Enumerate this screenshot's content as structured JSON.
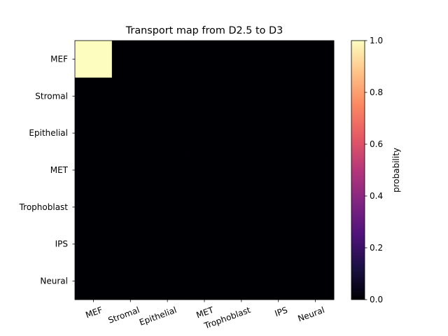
{
  "chart_data": {
    "type": "heatmap",
    "title": "Transport map from D2.5 to D3",
    "row_labels": [
      "MEF",
      "Stromal",
      "Epithelial",
      "MET",
      "Trophoblast",
      "IPS",
      "Neural"
    ],
    "col_labels": [
      "MEF",
      "Stromal",
      "Epithelial",
      "MET",
      "Trophoblast",
      "IPS",
      "Neural"
    ],
    "values": [
      [
        1,
        0,
        0,
        0,
        0,
        0,
        0
      ],
      [
        0,
        0,
        0,
        0,
        0,
        0,
        0
      ],
      [
        0,
        0,
        0,
        0,
        0,
        0,
        0
      ],
      [
        0,
        0,
        0,
        0,
        0,
        0,
        0
      ],
      [
        0,
        0,
        0,
        0,
        0,
        0,
        0
      ],
      [
        0,
        0,
        0,
        0,
        0,
        0,
        0
      ],
      [
        0,
        0,
        0,
        0,
        0,
        0,
        0
      ]
    ],
    "colormap": "magma",
    "colorbar": {
      "label": "probability",
      "range": [
        0,
        1
      ],
      "ticks": [
        "0.0",
        "0.2",
        "0.4",
        "0.6",
        "0.8",
        "1.0"
      ]
    },
    "colors": [
      "#000004",
      "#1c1044",
      "#4f127b",
      "#812581",
      "#b5367a",
      "#e55964",
      "#fb8761",
      "#fec287",
      "#fcfdbf"
    ]
  }
}
